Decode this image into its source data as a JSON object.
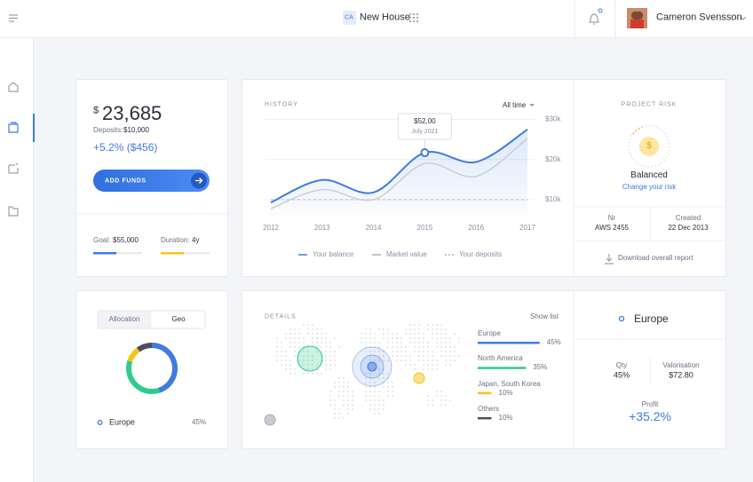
{
  "header": {
    "workspace_badge": "CA",
    "workspace": "New House",
    "user": "Cameron Svensson"
  },
  "balance": {
    "currency": "$",
    "amount": "23,685",
    "deposits_label": "Deposits:",
    "deposits": "$10,000",
    "change": "+5.2% ($456)",
    "button": "ADD FUNDS",
    "goal_label": "Goal:",
    "goal": "$55,000",
    "duration_label": "Duration:",
    "duration": "4y"
  },
  "history": {
    "type": "line",
    "title": "HISTORY",
    "filter": "All time",
    "categories": [
      "2012",
      "2013",
      "2014",
      "2015",
      "2016",
      "2017"
    ],
    "series": [
      {
        "name": "Your balance",
        "color": "#3f7be0",
        "values": [
          9.3,
          14.9,
          11.8,
          21.7,
          19.4,
          27.5
        ]
      },
      {
        "name": "Market value",
        "color": "#c9ced8",
        "values": [
          7.8,
          12.5,
          10,
          19,
          15.8,
          25.3
        ]
      },
      {
        "name": "Your deposits",
        "color": "#c9ced8",
        "dashed": true,
        "values": [
          10,
          10,
          10,
          10,
          10,
          10
        ]
      }
    ],
    "ylim": [
      6,
      31
    ],
    "yticks": [
      {
        "value": 10,
        "label": "$10k"
      },
      {
        "value": 20,
        "label": "$20k"
      },
      {
        "value": 30,
        "label": "$30k"
      }
    ],
    "grid": true,
    "tooltip": {
      "value": "$52,00",
      "date": "July 2021"
    }
  },
  "risk": {
    "title": "PROJECT RISK",
    "icon": "$",
    "status": "Balanced",
    "link": "Change your risk",
    "nr_label": "Nr",
    "nr": "AWS 2455",
    "created_label": "Created",
    "created": "22 Dec 2013",
    "download": "Download overall report"
  },
  "allocation": {
    "type": "donut",
    "tabs": [
      "Allocation",
      "Geo"
    ]
  },
  "details": {
    "title": "DETAILS",
    "action": "Show list",
    "regions": [
      {
        "name": "Europe",
        "value": 45,
        "value_label": "45%",
        "color": "#3f7be0"
      },
      {
        "name": "North America",
        "value": 35,
        "value_label": "35%",
        "color": "#2ecc8f"
      },
      {
        "name": "Japan, South Korea",
        "value": 10,
        "value_label": "10%",
        "color": "#f5c518"
      },
      {
        "name": "Others",
        "value": 10,
        "value_label": "10%",
        "color": "#4a4f5c"
      }
    ],
    "selected": "Europe",
    "qty_label": "Qty",
    "qty": "45%",
    "valorisation_label": "Valorisation",
    "valorisation": "$72.80",
    "profit_label": "Profit",
    "profit": "+35.2%"
  }
}
